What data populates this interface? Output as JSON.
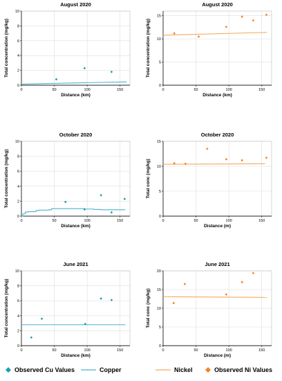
{
  "colors": {
    "copper": "#4bb3c9",
    "nickel": "#f4a95c",
    "cu_points": "#1aa0ad",
    "ni_points": "#f08520",
    "grid": "#dddddd",
    "axis": "#222222"
  },
  "legend": [
    {
      "label": "Observed Cu Values",
      "kind": "diamond",
      "color": "#1aa0ad"
    },
    {
      "label": "Copper",
      "kind": "line",
      "color": "#4bb3c9"
    },
    {
      "label": "Nickel",
      "kind": "line",
      "color": "#f4a95c"
    },
    {
      "label": "Observed Ni Values",
      "kind": "diamond",
      "color": "#f08520"
    }
  ],
  "chart_data": [
    {
      "type": "line",
      "title": "August 2020",
      "xlabel": "Distance (km)",
      "ylabel": "Total concentration (mg/kg)",
      "xlim": [
        0,
        165
      ],
      "ylim": [
        0,
        10
      ],
      "xticks": [
        0,
        50,
        100,
        150
      ],
      "yticks": [
        0,
        2,
        4,
        6,
        8,
        10
      ],
      "grid": true,
      "series": [
        {
          "kind": "line",
          "color": "#4bb3c9",
          "x": [
            0,
            160
          ],
          "y": [
            0.15,
            0.45
          ]
        },
        {
          "kind": "points",
          "color": "#1aa0ad",
          "x": [
            53,
            96,
            137
          ],
          "y": [
            0.8,
            2.3,
            1.8
          ]
        }
      ]
    },
    {
      "type": "line",
      "title": "August 2020",
      "xlabel": "Distance (km)",
      "ylabel": "Total concentration (mg/kg)",
      "xlim": [
        0,
        165
      ],
      "ylim": [
        0,
        16
      ],
      "xticks": [
        0,
        50,
        100,
        150
      ],
      "yticks": [
        0,
        5,
        10,
        15
      ],
      "grid": true,
      "series": [
        {
          "kind": "line",
          "color": "#f4a95c",
          "x": [
            0,
            158
          ],
          "y": [
            10.8,
            11.4
          ]
        },
        {
          "kind": "points",
          "color": "#f08520",
          "x": [
            17,
            54,
            96,
            120,
            137,
            157
          ],
          "y": [
            11.2,
            10.5,
            12.6,
            14.8,
            14.0,
            15.2
          ]
        }
      ]
    },
    {
      "type": "line",
      "title": "October 2020",
      "xlabel": "Distance (km)",
      "ylabel": "Total concentration (mg/kg)",
      "xlim": [
        0,
        165
      ],
      "ylim": [
        0,
        10
      ],
      "xticks": [
        0,
        50,
        100,
        150
      ],
      "yticks": [
        0,
        2,
        4,
        6,
        8,
        10
      ],
      "grid": true,
      "series": [
        {
          "kind": "step",
          "color": "#4bb3c9",
          "x": [
            0,
            2,
            6,
            10,
            14,
            22,
            26,
            42,
            46,
            96,
            110,
            120,
            158
          ],
          "y": [
            0.0,
            0.3,
            0.55,
            0.6,
            0.6,
            0.75,
            0.8,
            0.85,
            1.0,
            0.95,
            0.9,
            0.85,
            0.85
          ]
        },
        {
          "kind": "points",
          "color": "#1aa0ad",
          "x": [
            67,
            96,
            121,
            137,
            157
          ],
          "y": [
            1.9,
            0.9,
            2.8,
            0.5,
            2.3
          ]
        }
      ]
    },
    {
      "type": "line",
      "title": "October 2020",
      "xlabel": "Distance (m)",
      "ylabel": "Total conc (mg/kg)",
      "xlim": [
        0,
        165
      ],
      "ylim": [
        0,
        15
      ],
      "xticks": [
        0,
        50,
        100,
        150
      ],
      "yticks": [
        0,
        5,
        10,
        15
      ],
      "grid": true,
      "series": [
        {
          "kind": "line",
          "color": "#f4a95c",
          "x": [
            0,
            155
          ],
          "y": [
            10.4,
            10.5
          ]
        },
        {
          "kind": "points",
          "color": "#f08520",
          "x": [
            17,
            34,
            67,
            96,
            120,
            157
          ],
          "y": [
            10.6,
            10.5,
            13.5,
            11.4,
            11.2,
            11.7
          ]
        }
      ]
    },
    {
      "type": "line",
      "title": "June 2021",
      "xlabel": "Distance (km)",
      "ylabel": "Total concentration (mg/kg)",
      "xlim": [
        0,
        165
      ],
      "ylim": [
        0,
        10
      ],
      "xticks": [
        0,
        50,
        100,
        150
      ],
      "yticks": [
        0,
        2,
        4,
        6,
        8,
        10
      ],
      "grid": true,
      "series": [
        {
          "kind": "line",
          "color": "#4bb3c9",
          "x": [
            0,
            158
          ],
          "y": [
            2.8,
            2.8
          ]
        },
        {
          "kind": "points",
          "color": "#1aa0ad",
          "x": [
            15,
            31,
            97,
            121,
            137
          ],
          "y": [
            1.1,
            3.6,
            2.9,
            6.3,
            6.1
          ]
        }
      ]
    },
    {
      "type": "line",
      "title": "June 2021",
      "xlabel": "Distance (m)",
      "ylabel": "Total conc (mg/kg)",
      "xlim": [
        0,
        165
      ],
      "ylim": [
        0,
        20
      ],
      "xticks": [
        0,
        50,
        100,
        150
      ],
      "yticks": [
        0,
        5,
        10,
        15,
        20
      ],
      "grid": true,
      "series": [
        {
          "kind": "line",
          "color": "#f4a95c",
          "x": [
            0,
            158
          ],
          "y": [
            13.1,
            12.9
          ]
        },
        {
          "kind": "points",
          "color": "#f08520",
          "x": [
            16,
            33,
            96,
            120,
            137
          ],
          "y": [
            11.4,
            16.5,
            13.7,
            17.0,
            19.4
          ]
        }
      ]
    }
  ]
}
